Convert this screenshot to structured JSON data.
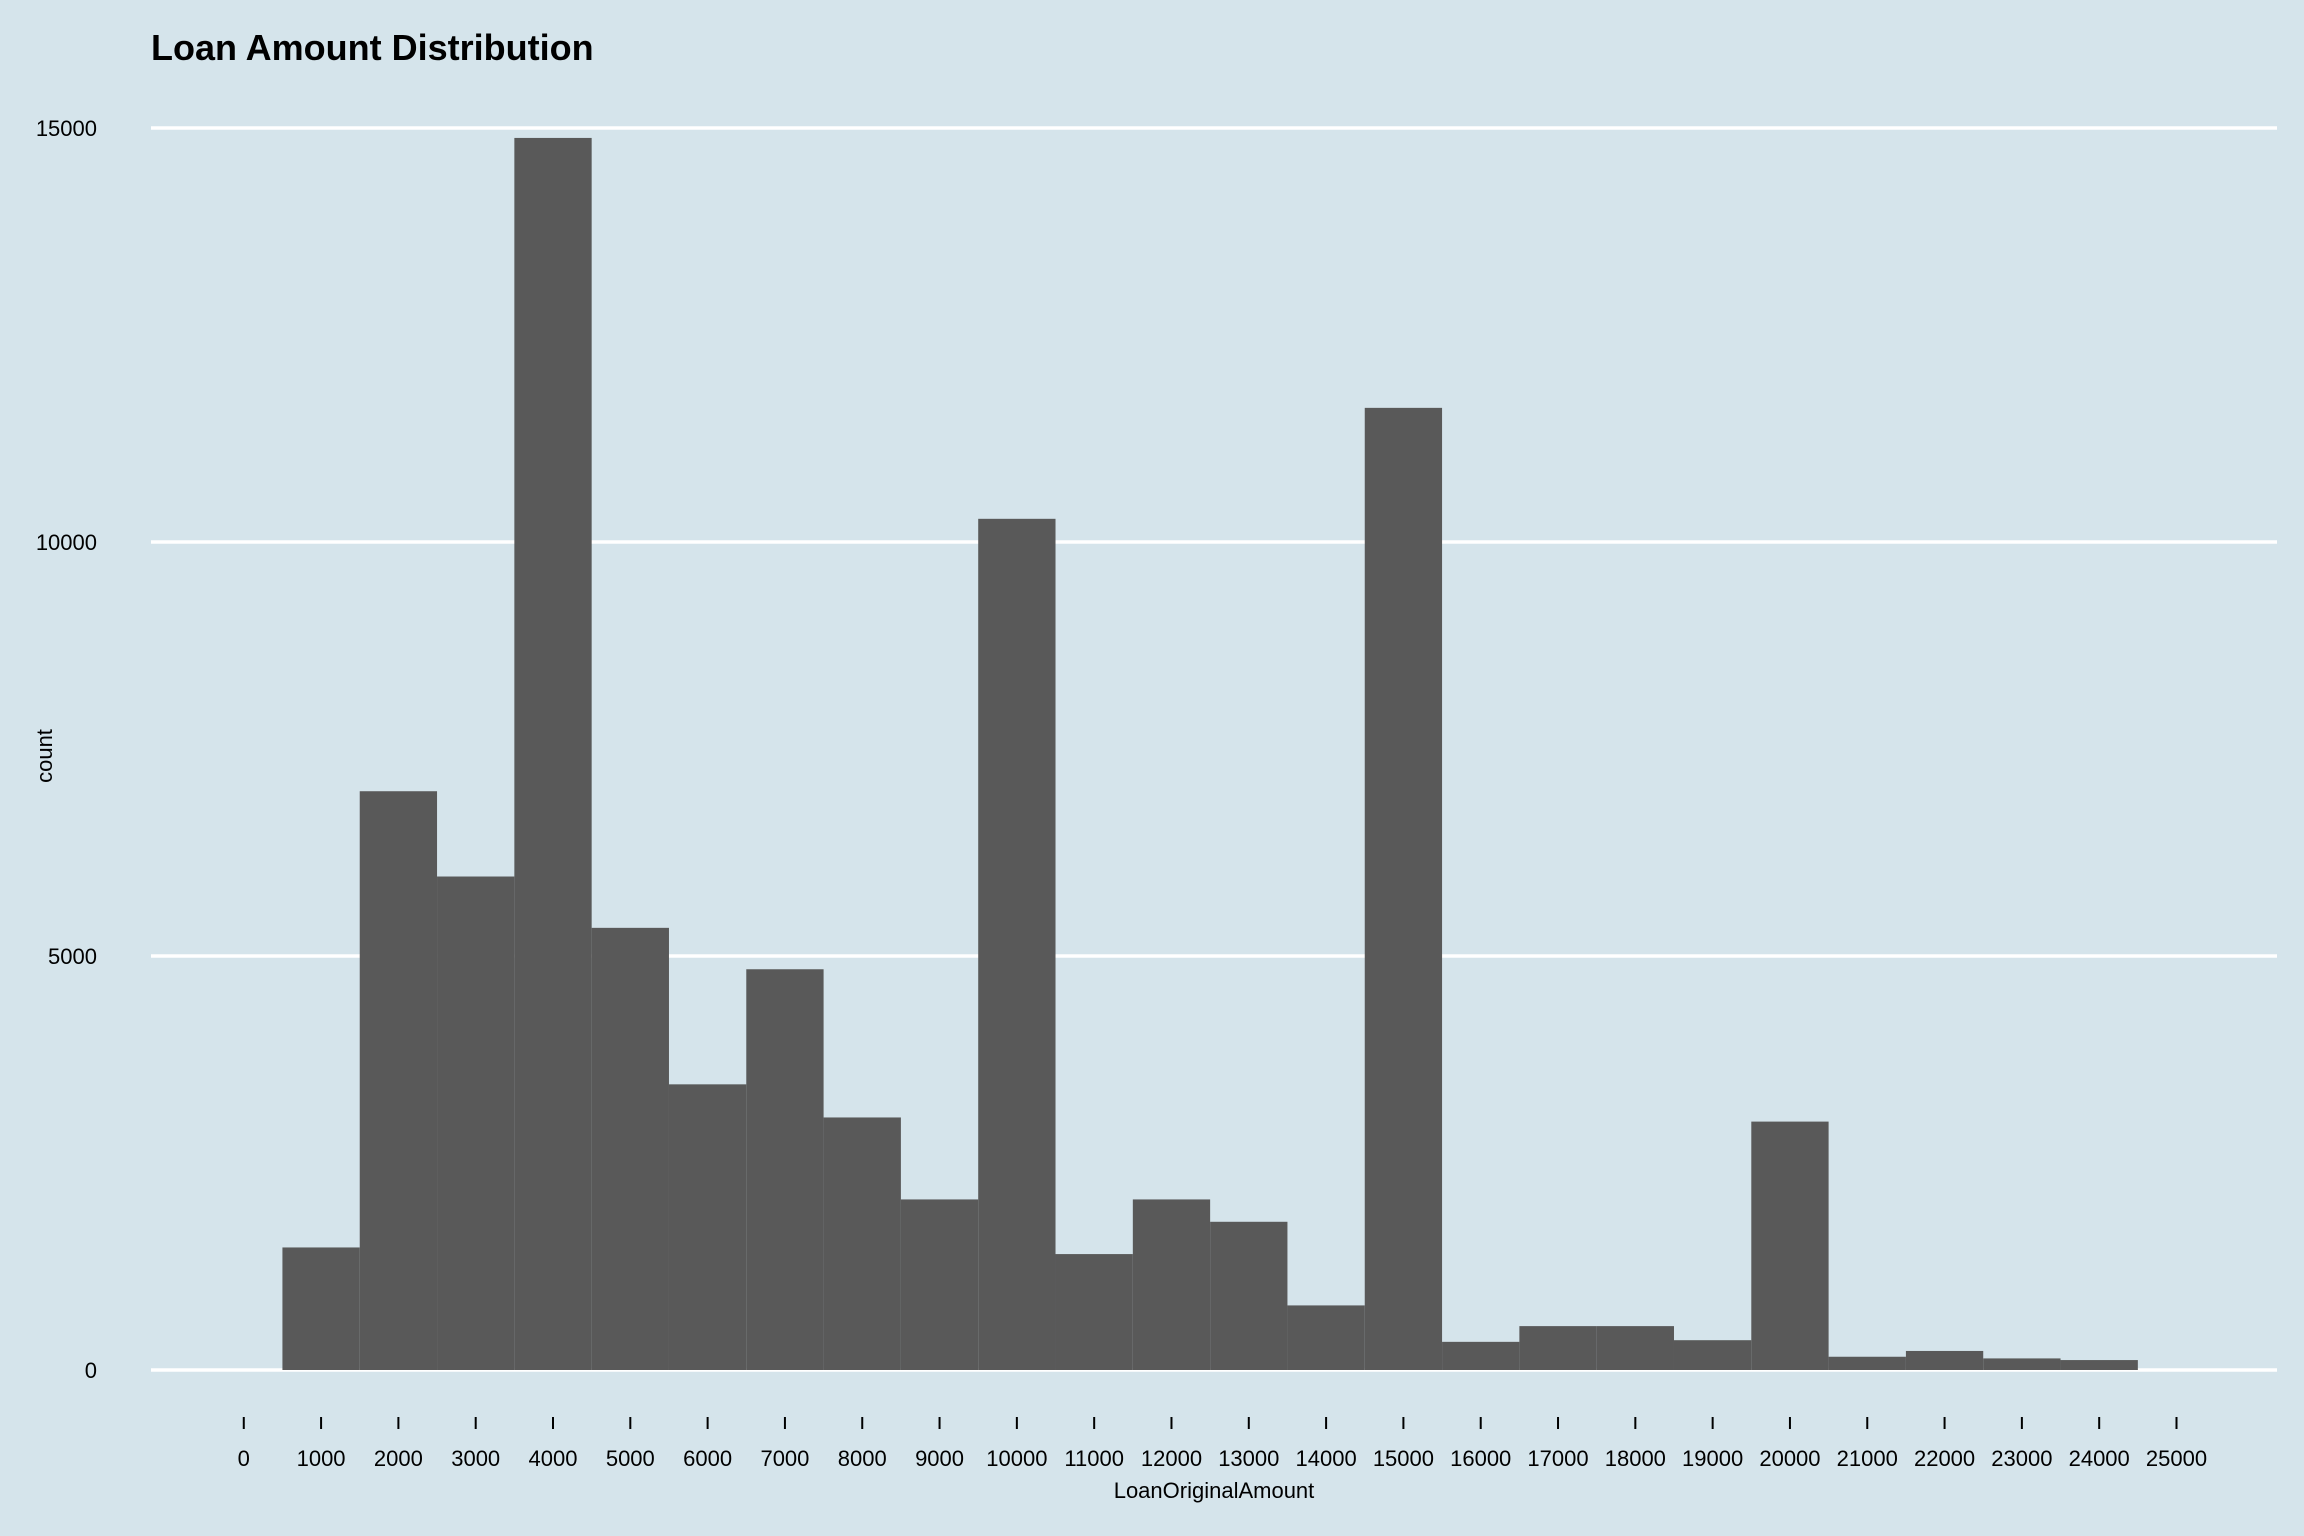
{
  "chart_data": {
    "type": "bar",
    "title": "Loan Amount Distribution",
    "xlabel": "LoanOriginalAmount",
    "ylabel": "count",
    "bin_width": 1000,
    "bin_centers": [
      1000,
      2000,
      3000,
      4000,
      5000,
      6000,
      7000,
      8000,
      9000,
      10000,
      11000,
      12000,
      13000,
      14000,
      15000,
      16000,
      17000,
      18000,
      19000,
      20000,
      21000,
      22000,
      23000,
      24000
    ],
    "values": [
      1480,
      6990,
      5960,
      14880,
      5340,
      3450,
      4840,
      3050,
      2060,
      10280,
      1400,
      2060,
      1790,
      780,
      11620,
      340,
      530,
      530,
      360,
      3000,
      160,
      230,
      140,
      120
    ],
    "xlim": [
      -1200,
      26300
    ],
    "ylim": [
      0,
      15800
    ],
    "x_ticks": [
      0,
      1000,
      2000,
      3000,
      4000,
      5000,
      6000,
      7000,
      8000,
      9000,
      10000,
      11000,
      12000,
      13000,
      14000,
      15000,
      16000,
      17000,
      18000,
      19000,
      20000,
      21000,
      22000,
      23000,
      24000,
      25000
    ],
    "x_tick_labels": [
      "0",
      "1000",
      "2000",
      "3000",
      "4000",
      "5000",
      "6000",
      "7000",
      "8000",
      "9000",
      "10000",
      "11000",
      "12000",
      "13000",
      "14000",
      "15000",
      "16000",
      "17000",
      "18000",
      "19000",
      "20000",
      "21000",
      "22000",
      "23000",
      "24000",
      "25000"
    ],
    "y_ticks": [
      0,
      5000,
      10000,
      15000
    ],
    "y_tick_labels": [
      "0",
      "5000",
      "10000",
      "15000"
    ],
    "grid": "horizontal-only",
    "colors": {
      "background": "#d5e4eb",
      "bar": "#595959",
      "grid": "#ffffff"
    }
  }
}
